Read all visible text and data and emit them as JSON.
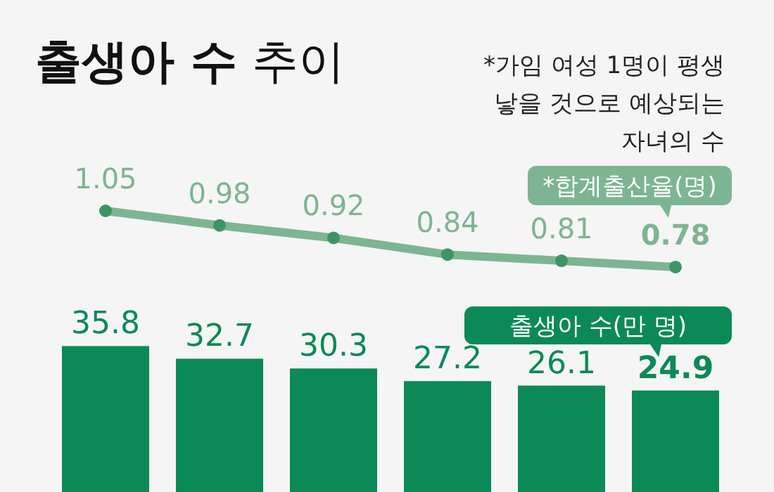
{
  "chart_data": [
    {
      "type": "line",
      "title": "**출생아 수** 추이",
      "annotations": [
        "*가임 여성 1명이 평생 낳을 것으로 예상되는 자녀의 수"
      ],
      "categories": [
        null,
        null,
        null,
        null,
        null,
        null
      ],
      "series": [
        {
          "name": "*합계출산율(명)",
          "color": "#7db592",
          "values": [
            1.05,
            0.98,
            0.92,
            0.84,
            0.81,
            0.78
          ]
        }
      ],
      "data_labels": true,
      "marker": "circle"
    },
    {
      "type": "bar",
      "categories": [
        null,
        null,
        null,
        null,
        null,
        null
      ],
      "series": [
        {
          "name": "출생아 수(만 명)",
          "color": "#0b8a57",
          "values": [
            35.8,
            32.7,
            30.3,
            27.2,
            26.1,
            24.9
          ]
        }
      ],
      "data_labels": true
    }
  ]
}
